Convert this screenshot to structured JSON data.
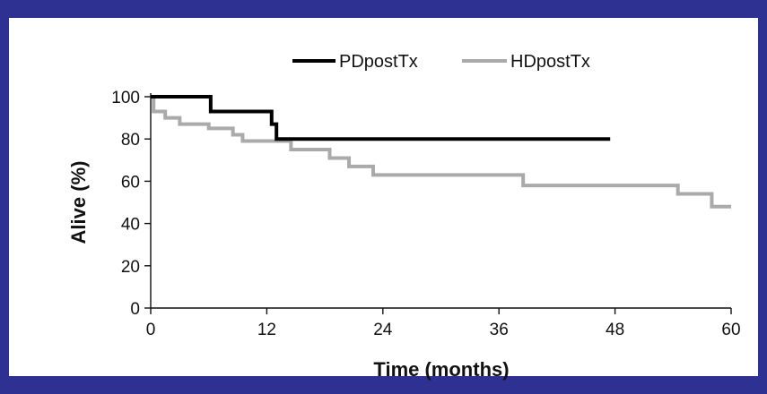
{
  "chart_data": {
    "type": "line",
    "step": true,
    "title": "",
    "xlabel": "Time (months)",
    "ylabel": "Alive (%)",
    "xlim": [
      0,
      60
    ],
    "ylim": [
      0,
      100
    ],
    "xticks": [
      0,
      12,
      24,
      36,
      48,
      60
    ],
    "yticks": [
      0,
      20,
      40,
      60,
      80,
      100
    ],
    "grid": false,
    "legend_position": "top",
    "series": [
      {
        "name": "PDpostTx",
        "color": "#000000",
        "x": [
          0,
          5.5,
          6.2,
          12.5,
          13.0,
          47.5
        ],
        "y": [
          100,
          100,
          93,
          87,
          80,
          80
        ]
      },
      {
        "name": "HDpostTx",
        "color": "#aaaaaa",
        "x": [
          0,
          0.3,
          1.5,
          3.0,
          6.0,
          8.5,
          9.5,
          14.5,
          18.5,
          20.5,
          23.0,
          38.5,
          54.5,
          58.0,
          60.0
        ],
        "y": [
          100,
          93,
          90,
          87,
          85,
          82,
          79,
          75,
          71,
          67,
          63,
          58,
          54,
          48,
          48
        ]
      }
    ]
  }
}
